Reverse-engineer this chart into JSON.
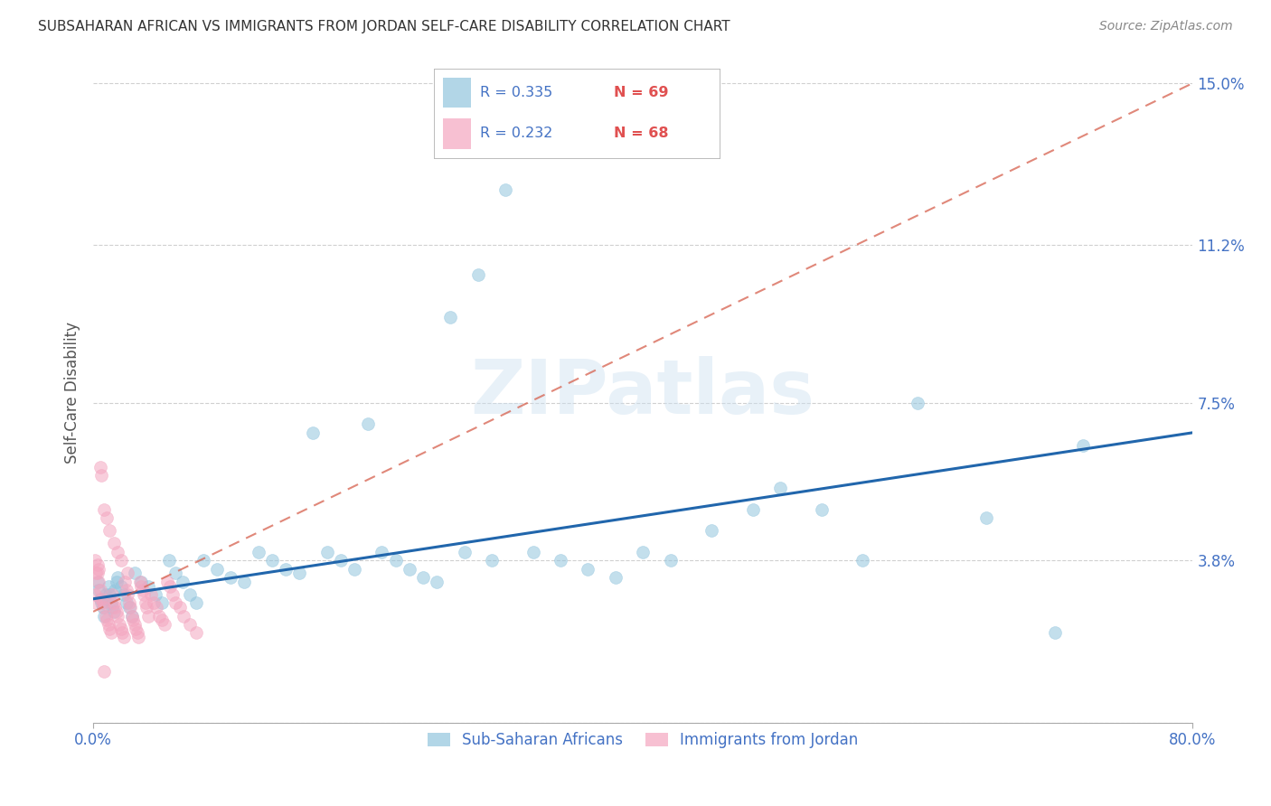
{
  "title": "SUBSAHARAN AFRICAN VS IMMIGRANTS FROM JORDAN SELF-CARE DISABILITY CORRELATION CHART",
  "source": "Source: ZipAtlas.com",
  "ylabel": "Self-Care Disability",
  "yticks": [
    0.0,
    0.038,
    0.075,
    0.112,
    0.15
  ],
  "ytick_labels": [
    "",
    "3.8%",
    "7.5%",
    "11.2%",
    "15.0%"
  ],
  "xlim": [
    0.0,
    0.8
  ],
  "ylim": [
    0.0,
    0.155
  ],
  "watermark": "ZIPatlas",
  "legend_r1": "R = 0.335",
  "legend_n1": "N = 69",
  "legend_r2": "R = 0.232",
  "legend_n2": "N = 68",
  "blue_color": "#92c5de",
  "pink_color": "#f4a6c0",
  "blue_line_color": "#2166ac",
  "pink_line_color": "#d6604d",
  "axis_label_color": "#4472c4",
  "tick_color": "#4472c4",
  "title_color": "#333333",
  "source_color": "#888888",
  "blue_scatter_x": [
    0.003,
    0.004,
    0.005,
    0.006,
    0.007,
    0.008,
    0.009,
    0.01,
    0.011,
    0.012,
    0.013,
    0.014,
    0.015,
    0.016,
    0.017,
    0.018,
    0.02,
    0.022,
    0.024,
    0.026,
    0.028,
    0.03,
    0.035,
    0.04,
    0.045,
    0.05,
    0.055,
    0.06,
    0.065,
    0.07,
    0.075,
    0.08,
    0.09,
    0.1,
    0.11,
    0.12,
    0.13,
    0.14,
    0.15,
    0.16,
    0.17,
    0.18,
    0.19,
    0.2,
    0.21,
    0.22,
    0.23,
    0.24,
    0.25,
    0.26,
    0.27,
    0.28,
    0.29,
    0.3,
    0.32,
    0.34,
    0.36,
    0.38,
    0.4,
    0.42,
    0.45,
    0.48,
    0.5,
    0.53,
    0.56,
    0.6,
    0.65,
    0.7,
    0.72
  ],
  "blue_scatter_y": [
    0.033,
    0.031,
    0.029,
    0.028,
    0.027,
    0.025,
    0.03,
    0.029,
    0.032,
    0.03,
    0.028,
    0.027,
    0.026,
    0.031,
    0.033,
    0.034,
    0.032,
    0.03,
    0.028,
    0.027,
    0.025,
    0.035,
    0.033,
    0.032,
    0.03,
    0.028,
    0.038,
    0.035,
    0.033,
    0.03,
    0.028,
    0.038,
    0.036,
    0.034,
    0.033,
    0.04,
    0.038,
    0.036,
    0.035,
    0.068,
    0.04,
    0.038,
    0.036,
    0.07,
    0.04,
    0.038,
    0.036,
    0.034,
    0.033,
    0.095,
    0.04,
    0.105,
    0.038,
    0.125,
    0.04,
    0.038,
    0.036,
    0.034,
    0.04,
    0.038,
    0.045,
    0.05,
    0.055,
    0.05,
    0.038,
    0.075,
    0.048,
    0.021,
    0.065
  ],
  "pink_scatter_x": [
    0.001,
    0.002,
    0.003,
    0.004,
    0.005,
    0.006,
    0.007,
    0.008,
    0.009,
    0.01,
    0.011,
    0.012,
    0.013,
    0.014,
    0.015,
    0.016,
    0.017,
    0.018,
    0.019,
    0.02,
    0.021,
    0.022,
    0.023,
    0.024,
    0.025,
    0.026,
    0.027,
    0.028,
    0.029,
    0.03,
    0.031,
    0.032,
    0.033,
    0.034,
    0.035,
    0.036,
    0.037,
    0.038,
    0.039,
    0.04,
    0.042,
    0.044,
    0.046,
    0.048,
    0.05,
    0.052,
    0.054,
    0.056,
    0.058,
    0.06,
    0.063,
    0.066,
    0.07,
    0.075,
    0.008,
    0.01,
    0.012,
    0.015,
    0.018,
    0.02,
    0.025,
    0.003,
    0.004,
    0.002,
    0.001,
    0.005,
    0.006,
    0.008
  ],
  "pink_scatter_y": [
    0.03,
    0.028,
    0.035,
    0.033,
    0.031,
    0.029,
    0.028,
    0.027,
    0.025,
    0.024,
    0.023,
    0.022,
    0.021,
    0.03,
    0.028,
    0.027,
    0.026,
    0.025,
    0.023,
    0.022,
    0.021,
    0.02,
    0.033,
    0.031,
    0.03,
    0.028,
    0.027,
    0.025,
    0.024,
    0.023,
    0.022,
    0.021,
    0.02,
    0.033,
    0.032,
    0.031,
    0.03,
    0.028,
    0.027,
    0.025,
    0.03,
    0.028,
    0.027,
    0.025,
    0.024,
    0.023,
    0.033,
    0.032,
    0.03,
    0.028,
    0.027,
    0.025,
    0.023,
    0.021,
    0.05,
    0.048,
    0.045,
    0.042,
    0.04,
    0.038,
    0.035,
    0.037,
    0.036,
    0.035,
    0.038,
    0.06,
    0.058,
    0.012
  ],
  "blue_trend_x0": 0.0,
  "blue_trend_x1": 0.8,
  "blue_trend_y0": 0.029,
  "blue_trend_y1": 0.068,
  "pink_trend_x0": 0.0,
  "pink_trend_x1": 0.8,
  "pink_trend_y0": 0.026,
  "pink_trend_y1": 0.15,
  "grid_color": "#d0d0d0",
  "background_color": "#ffffff",
  "legend_box_color": "#ffffff",
  "legend_border_color": "#cccccc"
}
